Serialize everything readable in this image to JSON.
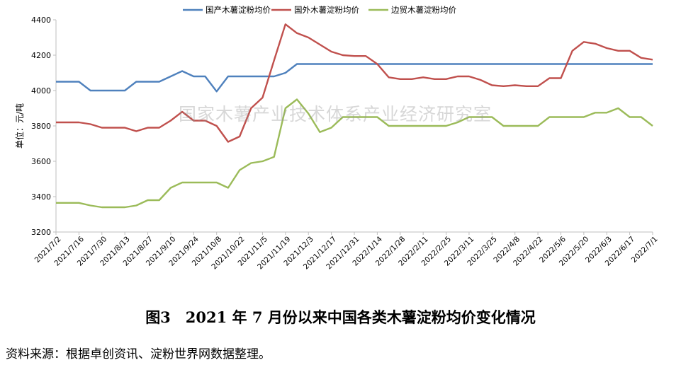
{
  "chart_data": {
    "type": "line",
    "title": "",
    "ylabel": "单位：元/吨",
    "xlabel": "",
    "ylim": [
      3200,
      4400
    ],
    "yticks": [
      "3200",
      "3400",
      "3600",
      "3800",
      "4000",
      "4200",
      "4400"
    ],
    "grid": false,
    "legend_position": "top",
    "x": [
      "2021/7/2",
      "2021/7/9",
      "2021/7/16",
      "2021/7/23",
      "2021/7/30",
      "2021/8/6",
      "2021/8/13",
      "2021/8/20",
      "2021/8/27",
      "2021/9/3",
      "2021/9/10",
      "2021/9/17",
      "2021/9/24",
      "2021/10/1",
      "2021/10/8",
      "2021/10/15",
      "2021/10/22",
      "2021/10/29",
      "2021/11/5",
      "2021/11/12",
      "2021/11/19",
      "2021/11/26",
      "2021/12/3",
      "2021/12/10",
      "2021/12/17",
      "2021/12/24",
      "2021/12/31",
      "2022/1/7",
      "2022/1/14",
      "2022/1/21",
      "2022/1/28",
      "2022/2/4",
      "2022/2/11",
      "2022/2/18",
      "2022/2/25",
      "2022/3/4",
      "2022/3/11",
      "2022/3/18",
      "2022/3/25",
      "2022/4/1",
      "2022/4/8",
      "2022/4/15",
      "2022/4/22",
      "2022/4/29",
      "2022/5/6",
      "2022/5/13",
      "2022/5/20",
      "2022/5/27",
      "2022/6/3",
      "2022/6/10",
      "2022/6/17",
      "2022/6/24",
      "2022/7/1"
    ],
    "x_tick_labels": [
      "2021/7/2",
      "2021/7/16",
      "2021/7/30",
      "2021/8/13",
      "2021/8/27",
      "2021/9/10",
      "2021/9/24",
      "2021/10/8",
      "2021/10/22",
      "2021/11/5",
      "2021/11/19",
      "2021/12/3",
      "2021/12/17",
      "2021/12/31",
      "2022/1/14",
      "2022/1/28",
      "2022/2/11",
      "2022/2/25",
      "2022/3/11",
      "2022/3/25",
      "2022/4/8",
      "2022/4/22",
      "2022/5/6",
      "2022/5/20",
      "2022/6/3",
      "2022/6/17",
      "2022/7/1"
    ],
    "series": [
      {
        "name": "国产木薯淀粉均价",
        "color": "#4f81bd",
        "values": [
          4050,
          4050,
          4050,
          4000,
          4000,
          4000,
          4000,
          4050,
          4050,
          4050,
          4080,
          4110,
          4080,
          4080,
          3995,
          4080,
          4080,
          4080,
          4080,
          4080,
          4100,
          4150,
          4150,
          4150,
          4150,
          4150,
          4150,
          4150,
          4150,
          4150,
          4150,
          4150,
          4150,
          4150,
          4150,
          4150,
          4150,
          4150,
          4150,
          4150,
          4150,
          4150,
          4150,
          4150,
          4150,
          4150,
          4150,
          4150,
          4150,
          4150,
          4150,
          4150,
          4150
        ]
      },
      {
        "name": "国外木薯淀粉均价",
        "color": "#c0504d",
        "values": [
          3820,
          3820,
          3820,
          3810,
          3790,
          3790,
          3790,
          3770,
          3790,
          3790,
          3830,
          3880,
          3830,
          3830,
          3800,
          3710,
          3740,
          3900,
          3960,
          4170,
          4375,
          4325,
          4300,
          4260,
          4220,
          4200,
          4195,
          4195,
          4150,
          4075,
          4065,
          4065,
          4075,
          4065,
          4065,
          4080,
          4080,
          4060,
          4030,
          4025,
          4030,
          4025,
          4025,
          4070,
          4070,
          4225,
          4275,
          4265,
          4240,
          4225,
          4225,
          4185,
          4175
        ]
      },
      {
        "name": "边贸木薯淀粉均价",
        "color": "#9bbb59",
        "values": [
          3365,
          3365,
          3365,
          3350,
          3340,
          3340,
          3340,
          3350,
          3380,
          3380,
          3450,
          3480,
          3480,
          3480,
          3480,
          3450,
          3550,
          3590,
          3600,
          3625,
          3900,
          3950,
          3870,
          3765,
          3790,
          3850,
          3850,
          3850,
          3850,
          3800,
          3800,
          3800,
          3800,
          3800,
          3800,
          3820,
          3850,
          3850,
          3850,
          3800,
          3800,
          3800,
          3800,
          3850,
          3850,
          3850,
          3850,
          3875,
          3875,
          3900,
          3850,
          3850,
          3800
        ]
      }
    ]
  },
  "watermark": "国家木薯产业技术体系产业经济研究室",
  "caption": "图3　2021 年 7 月份以来中国各类木薯淀粉均价变化情况",
  "source": "资料来源：根据卓创资讯、淀粉世界网数据整理。"
}
